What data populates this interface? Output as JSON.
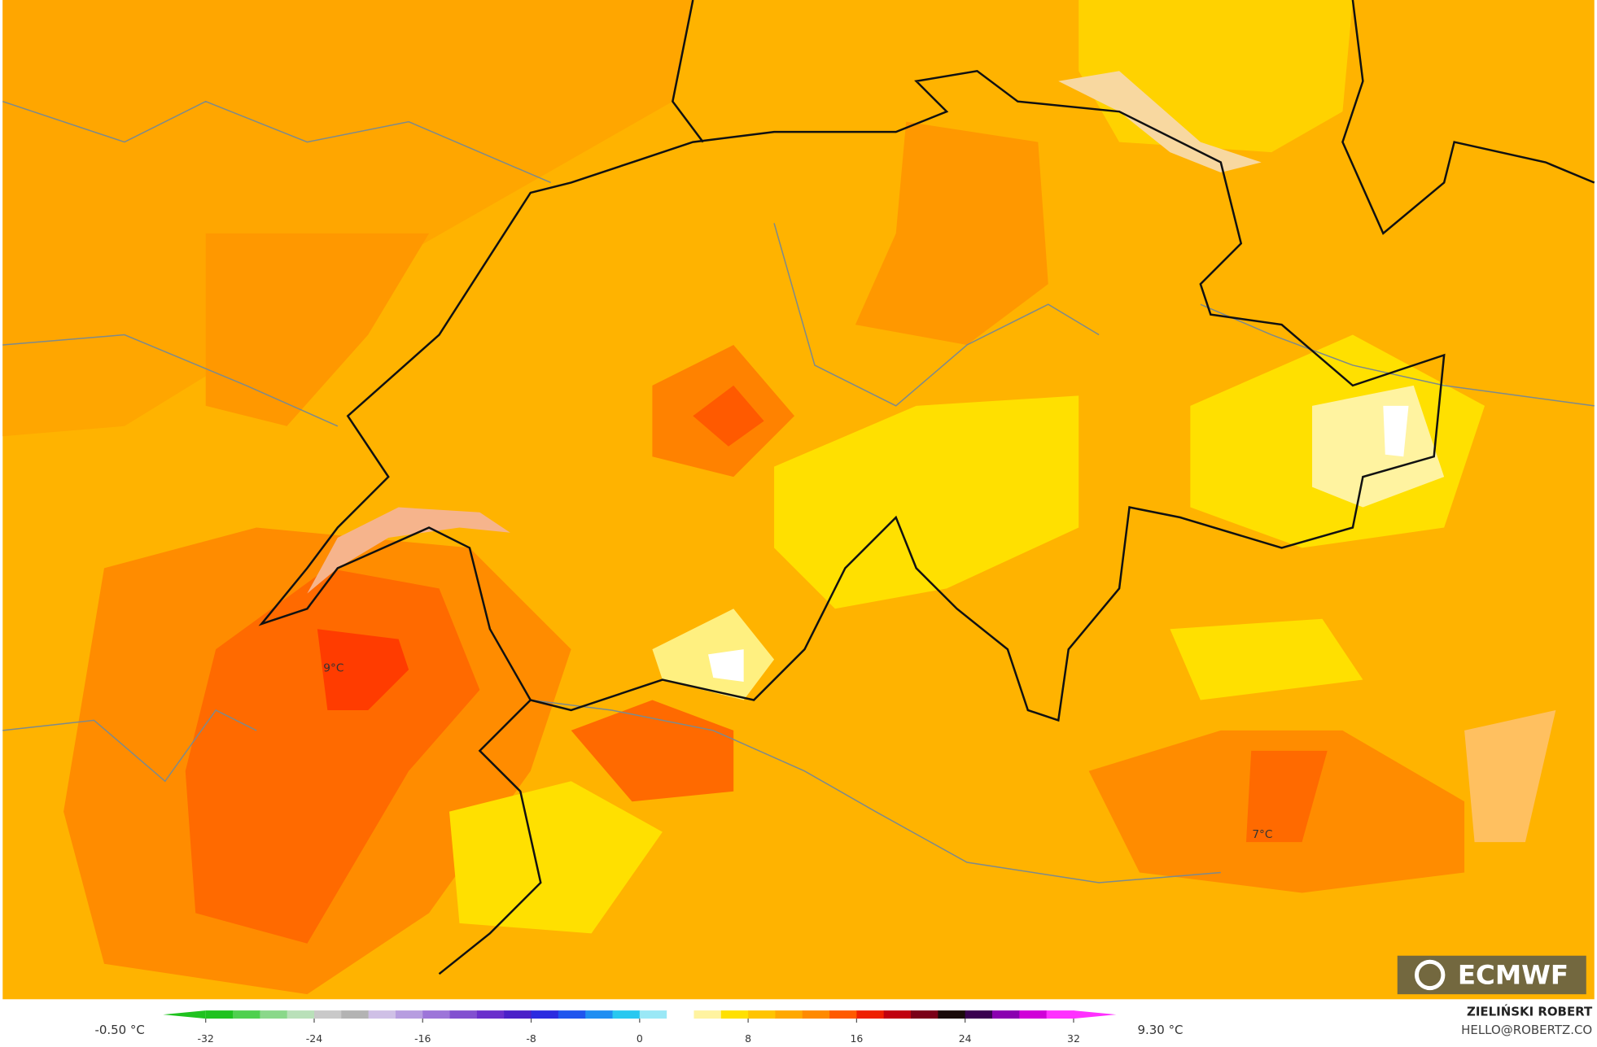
{
  "map": {
    "labels": [
      "9°C",
      "7°C"
    ],
    "logo": "ECMWF"
  },
  "colorbar": {
    "min_label": "-0.50 °C",
    "max_label": "9.30 °C",
    "lim": [
      -32,
      32
    ],
    "ticks": [
      -32,
      -24,
      -16,
      -8,
      0,
      8,
      16,
      24,
      32
    ],
    "colors": [
      "#1fc21f",
      "#4fd04f",
      "#8ad88a",
      "#b9e0b9",
      "#c9c9c9",
      "#b3b3b3",
      "#cfc0e6",
      "#b79de0",
      "#9d75d9",
      "#8250d0",
      "#6a2fcc",
      "#4a20c8",
      "#2b2be0",
      "#1f55ee",
      "#1f8ef2",
      "#28c8f0",
      "#9ae8f6",
      "#ffffff",
      "#fff3a0",
      "#ffe000",
      "#ffc400",
      "#ffa800",
      "#ff8a00",
      "#ff5a00",
      "#ee2000",
      "#c00010",
      "#7a0018",
      "#1a0a0a",
      "#3a0050",
      "#8a00b0",
      "#d000d8",
      "#ff30ff"
    ]
  },
  "credit": {
    "name": "ZIELIŃSKI ROBERT",
    "email": "HELLO@ROBERTZ.CO"
  }
}
